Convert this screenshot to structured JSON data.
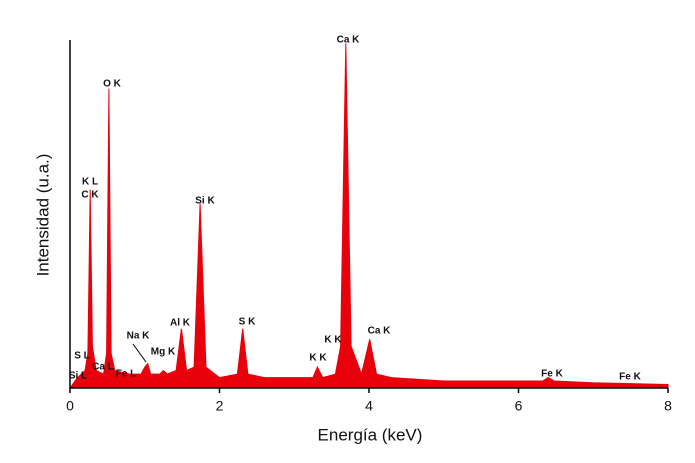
{
  "chart_data": {
    "type": "area",
    "x_label": "Energía (keV)",
    "y_label": "Intensidad (u.a.)",
    "color": "#e8000b",
    "xlim": [
      0,
      8
    ],
    "xticks": [
      0,
      2,
      4,
      6,
      8
    ],
    "ylim": [
      0,
      100
    ],
    "x": [
      0,
      0.1,
      0.2,
      0.24,
      0.27,
      0.3,
      0.35,
      0.45,
      0.49,
      0.52,
      0.55,
      0.6,
      0.8,
      0.95,
      1.0,
      1.04,
      1.08,
      1.2,
      1.25,
      1.3,
      1.42,
      1.49,
      1.56,
      1.66,
      1.74,
      1.82,
      2.0,
      2.24,
      2.31,
      2.38,
      2.6,
      3.0,
      3.25,
      3.31,
      3.38,
      3.55,
      3.62,
      3.69,
      3.76,
      3.9,
      4.01,
      4.1,
      4.3,
      5.0,
      6.0,
      6.32,
      6.4,
      6.48,
      7.0,
      8.0
    ],
    "values": [
      0,
      3,
      5,
      10,
      57,
      12,
      5,
      4,
      10,
      86,
      10,
      5,
      4,
      4,
      6,
      7,
      4,
      4,
      5,
      4,
      5,
      17,
      5,
      6,
      53,
      6,
      3,
      4,
      17,
      4,
      3,
      3,
      3,
      6,
      3,
      4,
      12,
      99,
      12,
      4,
      14,
      4,
      3,
      2,
      2,
      2,
      3,
      2,
      1.5,
      1
    ],
    "annotations": [
      "Ca K",
      "O K",
      "K L",
      "C K",
      "Si K",
      "Na K",
      "Al K",
      "Mg K",
      "S K",
      "K K",
      "K K",
      "Ca K",
      "Fe K",
      "Fe K",
      "S L",
      "Si L",
      "Ca L",
      "Fe L"
    ]
  }
}
